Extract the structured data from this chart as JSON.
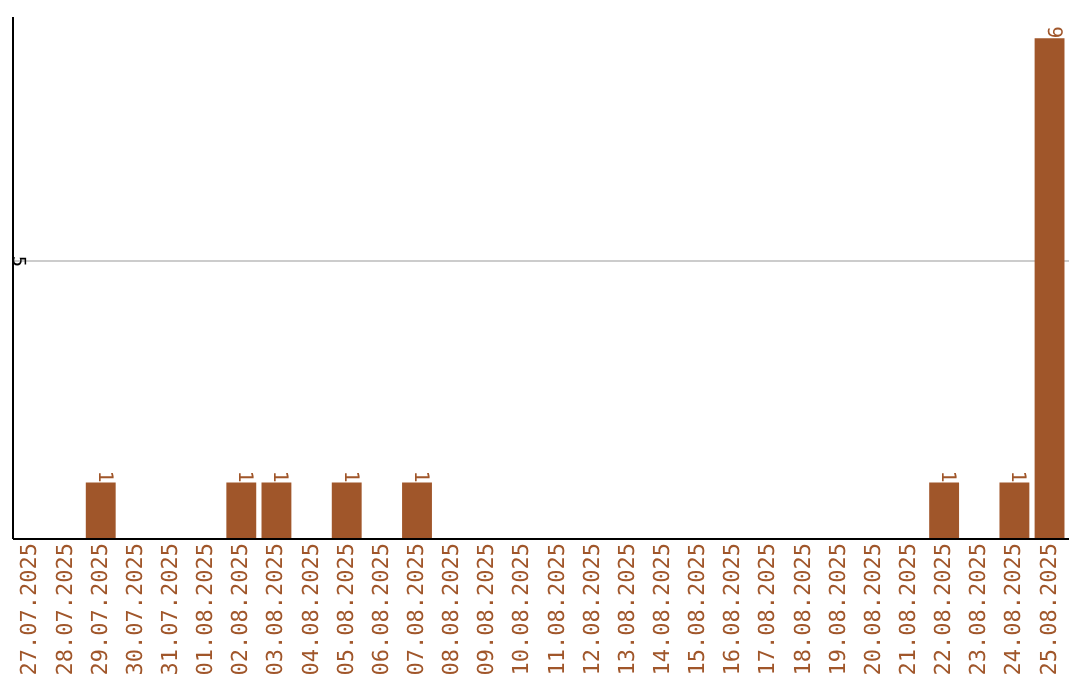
{
  "chart_data": {
    "type": "bar",
    "categories": [
      "27.07.2025",
      "28.07.2025",
      "29.07.2025",
      "30.07.2025",
      "31.07.2025",
      "01.08.2025",
      "02.08.2025",
      "03.08.2025",
      "04.08.2025",
      "05.08.2025",
      "06.08.2025",
      "07.08.2025",
      "08.08.2025",
      "09.08.2025",
      "10.08.2025",
      "11.08.2025",
      "12.08.2025",
      "13.08.2025",
      "14.08.2025",
      "15.08.2025",
      "16.08.2025",
      "17.08.2025",
      "18.08.2025",
      "19.08.2025",
      "20.08.2025",
      "21.08.2025",
      "22.08.2025",
      "23.08.2025",
      "24.08.2025",
      "25.08.2025"
    ],
    "values": [
      0,
      0,
      1,
      0,
      0,
      0,
      1,
      1,
      0,
      1,
      0,
      1,
      0,
      0,
      0,
      0,
      0,
      0,
      0,
      0,
      0,
      0,
      0,
      0,
      0,
      0,
      1,
      0,
      1,
      9
    ],
    "value_labels": [
      null,
      null,
      "1",
      null,
      null,
      null,
      "1",
      "1",
      null,
      "1",
      null,
      "1",
      null,
      null,
      null,
      null,
      null,
      null,
      null,
      null,
      null,
      null,
      null,
      null,
      null,
      null,
      "1",
      null,
      "1",
      "9"
    ],
    "color": "#a0562a",
    "ylim": [
      0,
      9.4
    ],
    "yticks": [
      5
    ],
    "grid": "y"
  }
}
